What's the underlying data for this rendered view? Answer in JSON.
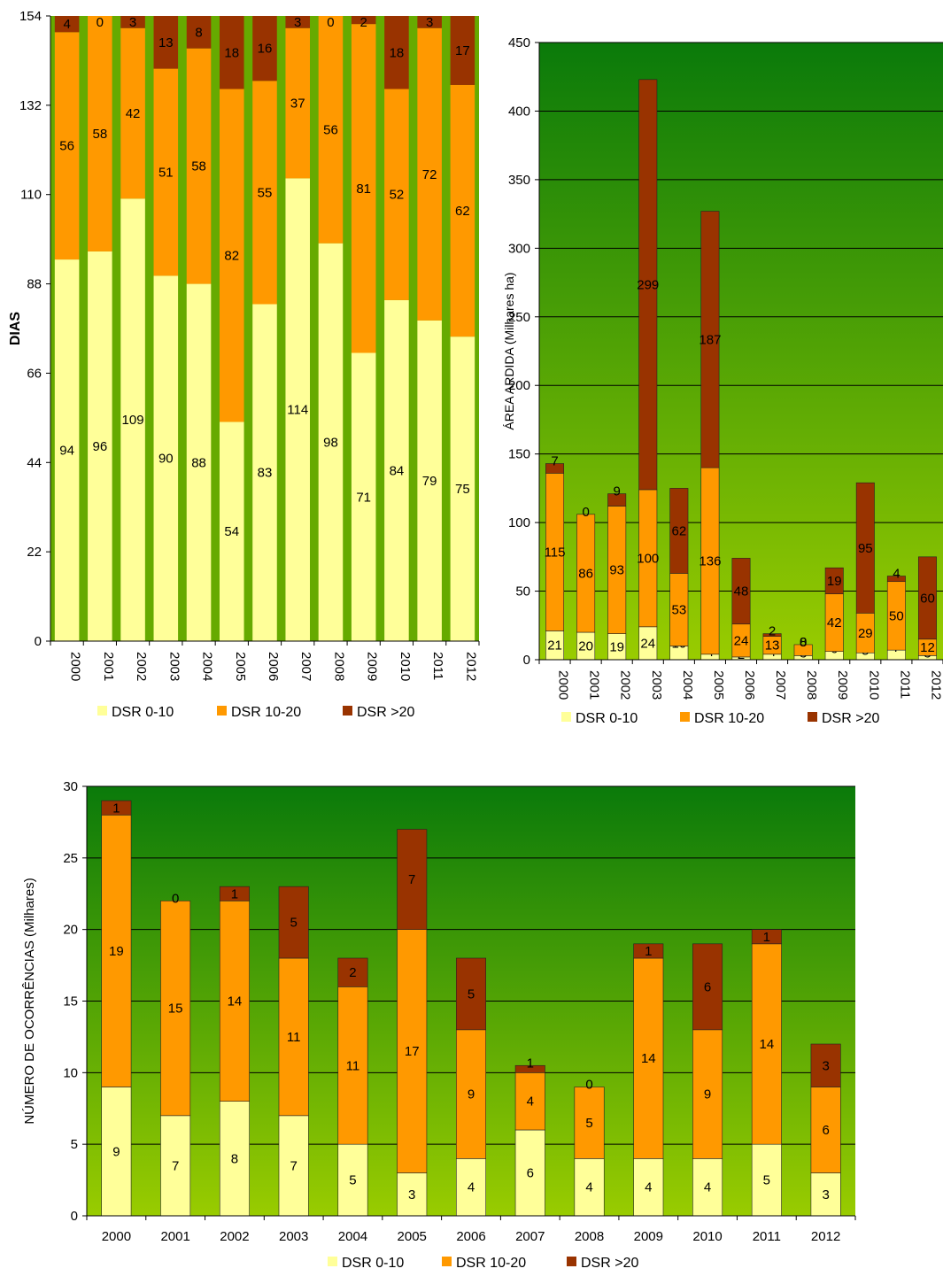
{
  "colors": {
    "dsr_0_10": "#ffff99",
    "dsr_10_20": "#ff9900",
    "dsr_gt_20": "#993300",
    "bg_top": "#0a7a0a",
    "bg_bottom": "#99cc00",
    "gridline": "#000000",
    "bar_gap_green": "#66aa00"
  },
  "chart_data": [
    {
      "type": "bar",
      "stacked": true,
      "title": "",
      "xlabel": "",
      "ylabel": "DIAS",
      "ylim": [
        0,
        154
      ],
      "yticks": [
        0,
        22,
        44,
        66,
        88,
        110,
        132,
        154
      ],
      "grid": false,
      "legend_position": "bottom",
      "categories": [
        "2000",
        "2001",
        "2002",
        "2003",
        "2004",
        "2005",
        "2006",
        "2007",
        "2008",
        "2009",
        "2010",
        "2011",
        "2012"
      ],
      "series": [
        {
          "name": "DSR 0-10",
          "values": [
            94,
            96,
            109,
            90,
            88,
            54,
            83,
            114,
            98,
            71,
            84,
            79,
            75
          ]
        },
        {
          "name": "DSR  10-20",
          "values": [
            56,
            58,
            42,
            51,
            58,
            82,
            55,
            37,
            56,
            81,
            52,
            72,
            62
          ]
        },
        {
          "name": "DSR >20",
          "values": [
            4,
            0,
            3,
            13,
            8,
            18,
            16,
            3,
            0,
            2,
            18,
            3,
            17
          ]
        }
      ]
    },
    {
      "type": "bar",
      "stacked": true,
      "title": "",
      "xlabel": "",
      "ylabel": "ÁREA ARDIDA  (Milhares ha)",
      "ylim": [
        0,
        450
      ],
      "yticks": [
        0,
        50,
        100,
        150,
        200,
        250,
        300,
        350,
        400,
        450
      ],
      "grid": true,
      "legend_position": "bottom",
      "categories": [
        "2000",
        "2001",
        "2002",
        "2003",
        "2004",
        "2005",
        "2006",
        "2007",
        "2008",
        "2009",
        "2010",
        "2011",
        "2012"
      ],
      "series": [
        {
          "name": "DSR 0-10",
          "values": [
            21,
            20,
            19,
            24,
            10,
            4,
            2,
            4,
            3,
            6,
            5,
            7,
            3
          ]
        },
        {
          "name": "DSR  10-20",
          "values": [
            115,
            86,
            93,
            100,
            53,
            136,
            24,
            13,
            8,
            42,
            29,
            50,
            12
          ]
        },
        {
          "name": "DSR >20",
          "values": [
            7,
            0,
            9,
            299,
            62,
            187,
            48,
            2,
            0,
            19,
            95,
            4,
            60
          ]
        }
      ]
    },
    {
      "type": "bar",
      "stacked": true,
      "title": "",
      "xlabel": "",
      "ylabel": "NÚMERO DE OCORRÊNCIAS (Milhares)",
      "ylim": [
        0,
        30
      ],
      "yticks": [
        0,
        5,
        10,
        15,
        20,
        25,
        30
      ],
      "grid": true,
      "legend_position": "bottom",
      "categories": [
        "2000",
        "2001",
        "2002",
        "2003",
        "2004",
        "2005",
        "2006",
        "2007",
        "2008",
        "2009",
        "2010",
        "2011",
        "2012"
      ],
      "series": [
        {
          "name": "DSR 0-10",
          "values": [
            9,
            7,
            8,
            7,
            5,
            3,
            4,
            6,
            4,
            4,
            4,
            5,
            3
          ]
        },
        {
          "name": "DSR  10-20",
          "values": [
            19,
            15,
            14,
            11,
            11,
            17,
            9,
            4,
            5,
            14,
            9,
            14,
            6
          ]
        },
        {
          "name": "DSR >20",
          "values": [
            1,
            0,
            1,
            5,
            2,
            7,
            5,
            0.5,
            0,
            1,
            6,
            1,
            3
          ]
        }
      ],
      "bar_labels": {
        "DSR >20": [
          "1",
          "0",
          "1",
          "5",
          "2",
          "7",
          "5",
          "1",
          "0",
          "1",
          "6",
          "1",
          "3"
        ]
      }
    }
  ]
}
